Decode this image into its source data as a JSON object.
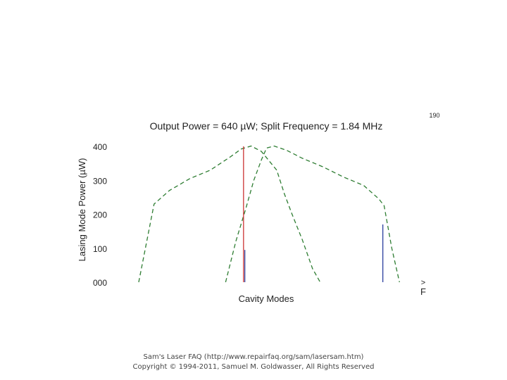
{
  "corner_label": "190",
  "side_marks": {
    "top": ">",
    "bottom": "F"
  },
  "footer": {
    "line1": "Sam's Laser FAQ (http://www.repairfaq.org/sam/lasersam.htm)",
    "line2": "Copyright © 1994-2011, Samuel M. Goldwasser, All Rights Reserved"
  },
  "colors": {
    "gain_curve": "#2e7d32",
    "mode_red": "#cc3333",
    "mode_blue": "#2b3f9e",
    "text": "#222222"
  },
  "chart_data": {
    "type": "line",
    "title": "Output Power = 640 µW; Split Frequency = 1.84 MHz",
    "xlabel": "Cavity Modes",
    "ylabel": "Lasing Mode Power (µW)",
    "ylim": [
      0,
      400
    ],
    "yticks": [
      {
        "value": 0,
        "label": "000"
      },
      {
        "value": 100,
        "label": "100"
      },
      {
        "value": 200,
        "label": "200"
      },
      {
        "value": 300,
        "label": "300"
      },
      {
        "value": 400,
        "label": "400"
      }
    ],
    "xlim": [
      0,
      100
    ],
    "grid": false,
    "curves": [
      {
        "style": "dashed",
        "points": [
          [
            0,
            0
          ],
          [
            6,
            230
          ],
          [
            12,
            270
          ],
          [
            20,
            305
          ],
          [
            28,
            330
          ],
          [
            36,
            370
          ],
          [
            40,
            392
          ],
          [
            44,
            401
          ],
          [
            48,
            385
          ],
          [
            54,
            330
          ],
          [
            57,
            260
          ],
          [
            60,
            200
          ],
          [
            64,
            125
          ],
          [
            68,
            40
          ],
          [
            71,
            0
          ]
        ]
      },
      {
        "style": "dashed",
        "points": [
          [
            34,
            0
          ],
          [
            38,
            120
          ],
          [
            42,
            220
          ],
          [
            45,
            300
          ],
          [
            48,
            360
          ],
          [
            50,
            395
          ],
          [
            53,
            401
          ],
          [
            58,
            388
          ],
          [
            64,
            365
          ],
          [
            72,
            340
          ],
          [
            80,
            310
          ],
          [
            88,
            285
          ],
          [
            94,
            245
          ],
          [
            96,
            225
          ],
          [
            99,
            100
          ],
          [
            102,
            0
          ]
        ]
      }
    ],
    "modes": [
      {
        "x": 41,
        "value": 400,
        "color": "#cc3333"
      },
      {
        "x": 41.5,
        "value": 95,
        "color": "#2b3f9e"
      },
      {
        "x": 95.5,
        "value": 170,
        "color": "#2b3f9e"
      }
    ]
  }
}
